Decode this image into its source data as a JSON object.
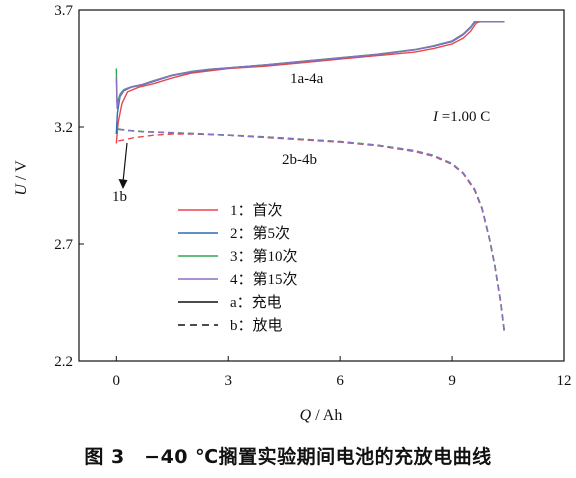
{
  "chart_data": {
    "type": "line",
    "xlabel_var": "Q",
    "xlabel_unit": " / Ah",
    "ylabel_var": "U",
    "ylabel_unit": " / V",
    "xlim": [
      -1,
      12
    ],
    "ylim": [
      2.2,
      3.7
    ],
    "xticks": [
      "0",
      "3",
      "6",
      "9",
      "12"
    ],
    "xtick_values": [
      0,
      3,
      6,
      9,
      12
    ],
    "yticks": [
      "2.2",
      "2.7",
      "3.2",
      "3.7"
    ],
    "ytick_values": [
      2.2,
      2.7,
      3.2,
      3.7
    ],
    "grid": false,
    "legend_position": "left-center",
    "annotations": {
      "charge_group": "1a-4a",
      "discharge_group": "2b-4b",
      "current_var": "I",
      "current_value": " =1.00 C",
      "arrow_label": "1b"
    },
    "legend": [
      {
        "num": "1",
        "sep": "：",
        "label": "首次",
        "color": "#e8474d",
        "dash": false
      },
      {
        "num": "2",
        "sep": "：",
        "label": "第5次",
        "color": "#2a6db3",
        "dash": false
      },
      {
        "num": "3",
        "sep": "：",
        "label": "第10次",
        "color": "#2ea84f",
        "dash": false
      },
      {
        "num": "4",
        "sep": "：",
        "label": "第15次",
        "color": "#8a6fc2",
        "dash": false
      },
      {
        "num": "a",
        "sep": "：",
        "label": "充电",
        "color": "#111111",
        "dash": false
      },
      {
        "num": "b",
        "sep": "：",
        "label": "放电",
        "color": "#111111",
        "dash": true
      }
    ],
    "series": [
      {
        "name": "1a",
        "color": "#e8474d",
        "dash": false,
        "x": [
          0,
          0.05,
          0.15,
          0.3,
          0.6,
          1.0,
          1.5,
          2.0,
          2.5,
          3.0,
          4.0,
          5.0,
          6.0,
          7.0,
          8.0,
          8.5,
          9.0,
          9.3,
          9.5,
          9.65,
          9.75,
          10.4
        ],
        "y": [
          3.13,
          3.22,
          3.3,
          3.35,
          3.37,
          3.385,
          3.41,
          3.43,
          3.44,
          3.45,
          3.46,
          3.475,
          3.49,
          3.505,
          3.52,
          3.535,
          3.555,
          3.58,
          3.61,
          3.645,
          3.65,
          3.65
        ]
      },
      {
        "name": "2a",
        "color": "#2a6db3",
        "dash": false,
        "x": [
          0,
          0.03,
          0.1,
          0.2,
          0.4,
          0.7,
          1.0,
          1.5,
          2.0,
          2.5,
          3.0,
          4.0,
          5.0,
          6.0,
          7.0,
          8.0,
          8.5,
          9.0,
          9.3,
          9.5,
          9.62,
          10.4
        ],
        "y": [
          3.17,
          3.26,
          3.33,
          3.355,
          3.37,
          3.38,
          3.395,
          3.42,
          3.435,
          3.445,
          3.452,
          3.465,
          3.48,
          3.495,
          3.51,
          3.53,
          3.545,
          3.565,
          3.595,
          3.625,
          3.65,
          3.65
        ]
      },
      {
        "name": "3a",
        "color": "#2ea84f",
        "dash": false,
        "x": [
          0,
          0.02,
          0.1,
          0.2,
          0.4,
          0.7,
          1.0,
          1.5,
          2.0,
          2.5,
          3.0,
          4.0,
          5.0,
          6.0,
          7.0,
          8.0,
          8.5,
          9.0,
          9.3,
          9.5,
          9.6,
          10.4
        ],
        "y": [
          3.45,
          3.3,
          3.34,
          3.36,
          3.372,
          3.382,
          3.398,
          3.422,
          3.437,
          3.447,
          3.453,
          3.466,
          3.481,
          3.496,
          3.511,
          3.531,
          3.547,
          3.568,
          3.598,
          3.628,
          3.65,
          3.65
        ]
      },
      {
        "name": "4a",
        "color": "#8a6fc2",
        "dash": false,
        "x": [
          0,
          0.02,
          0.1,
          0.2,
          0.4,
          0.7,
          1.0,
          1.5,
          2.0,
          2.5,
          3.0,
          4.0,
          5.0,
          6.0,
          7.0,
          8.0,
          8.5,
          9.0,
          9.3,
          9.5,
          9.6,
          10.4
        ],
        "y": [
          3.41,
          3.28,
          3.335,
          3.358,
          3.371,
          3.381,
          3.397,
          3.421,
          3.436,
          3.446,
          3.452,
          3.465,
          3.48,
          3.495,
          3.51,
          3.53,
          3.546,
          3.567,
          3.597,
          3.627,
          3.65,
          3.65
        ]
      },
      {
        "name": "1b",
        "color": "#e8474d",
        "dash": true,
        "x": [
          0.05,
          0.2,
          0.5,
          1.0,
          1.5,
          2.0,
          3.0,
          4.0,
          5.0,
          6.0,
          7.0,
          8.0,
          8.5,
          9.0,
          9.3,
          9.6,
          9.8,
          10.0,
          10.15,
          10.3,
          10.4
        ],
        "y": [
          3.14,
          3.145,
          3.155,
          3.165,
          3.17,
          3.17,
          3.165,
          3.155,
          3.145,
          3.135,
          3.12,
          3.095,
          3.075,
          3.04,
          3.0,
          2.93,
          2.85,
          2.72,
          2.6,
          2.45,
          2.32
        ]
      },
      {
        "name": "2b",
        "color": "#2a6db3",
        "dash": true,
        "x": [
          0.05,
          0.3,
          0.7,
          1.0,
          1.5,
          2.0,
          3.0,
          4.0,
          5.0,
          6.0,
          7.0,
          8.0,
          8.5,
          9.0,
          9.3,
          9.6,
          9.8,
          10.0,
          10.15,
          10.3,
          10.4
        ],
        "y": [
          3.19,
          3.185,
          3.18,
          3.178,
          3.175,
          3.172,
          3.165,
          3.157,
          3.147,
          3.137,
          3.122,
          3.098,
          3.078,
          3.043,
          3.003,
          2.935,
          2.855,
          2.725,
          2.605,
          2.455,
          2.33
        ]
      },
      {
        "name": "3b",
        "color": "#2ea84f",
        "dash": true,
        "x": [
          0.05,
          0.3,
          0.7,
          1.0,
          1.5,
          2.0,
          3.0,
          4.0,
          5.0,
          6.0,
          7.0,
          8.0,
          8.5,
          9.0,
          9.3,
          9.6,
          9.8,
          10.0,
          10.15,
          10.3,
          10.4
        ],
        "y": [
          3.192,
          3.186,
          3.181,
          3.179,
          3.176,
          3.173,
          3.166,
          3.158,
          3.148,
          3.138,
          3.123,
          3.099,
          3.079,
          3.044,
          3.004,
          2.936,
          2.857,
          2.727,
          2.607,
          2.457,
          2.33
        ]
      },
      {
        "name": "4b",
        "color": "#8a6fc2",
        "dash": true,
        "x": [
          0.05,
          0.3,
          0.7,
          1.0,
          1.5,
          2.0,
          3.0,
          4.0,
          5.0,
          6.0,
          7.0,
          8.0,
          8.5,
          9.0,
          9.3,
          9.6,
          9.8,
          10.0,
          10.15,
          10.3,
          10.4
        ],
        "y": [
          3.19,
          3.185,
          3.18,
          3.178,
          3.175,
          3.172,
          3.165,
          3.157,
          3.147,
          3.137,
          3.122,
          3.098,
          3.078,
          3.043,
          3.003,
          2.935,
          2.855,
          2.725,
          2.605,
          2.455,
          2.33
        ]
      }
    ]
  },
  "caption": "图 3　−40 ℃搁置实验期间电池的充放电曲线"
}
